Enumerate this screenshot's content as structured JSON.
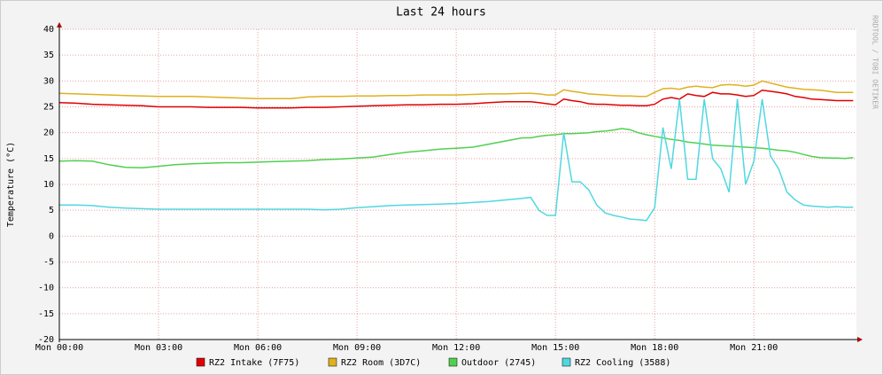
{
  "chart_data": {
    "type": "line",
    "title": "Last 24 hours",
    "y_label": "Temperature (°C)",
    "side_text": "RRDTOOL / TOBI OETIKER",
    "x": [
      0,
      0.5,
      1,
      1.5,
      2,
      2.5,
      3,
      3.5,
      4,
      4.5,
      5,
      5.5,
      6,
      6.5,
      7,
      7.5,
      8,
      8.5,
      9,
      9.5,
      10,
      10.5,
      11,
      11.5,
      12,
      12.5,
      13,
      13.5,
      14,
      14.25,
      14.5,
      14.75,
      15,
      15.25,
      15.5,
      15.75,
      16,
      16.25,
      16.5,
      16.75,
      17,
      17.25,
      17.5,
      17.75,
      18,
      18.25,
      18.5,
      18.75,
      19,
      19.25,
      19.5,
      19.75,
      20,
      20.25,
      20.5,
      20.75,
      21,
      21.25,
      21.5,
      21.75,
      22,
      22.25,
      22.5,
      22.75,
      23,
      23.25,
      23.5,
      23.75,
      24
    ],
    "xlim": [
      0,
      24.1
    ],
    "xticks": [
      {
        "value": 0,
        "label": "Mon 00:00"
      },
      {
        "value": 3,
        "label": "Mon 03:00"
      },
      {
        "value": 6,
        "label": "Mon 06:00"
      },
      {
        "value": 9,
        "label": "Mon 09:00"
      },
      {
        "value": 12,
        "label": "Mon 12:00"
      },
      {
        "value": 15,
        "label": "Mon 15:00"
      },
      {
        "value": 18,
        "label": "Mon 18:00"
      },
      {
        "value": 21,
        "label": "Mon 21:00"
      }
    ],
    "ylim": [
      -20,
      40
    ],
    "yticks": [
      -20,
      -15,
      -10,
      -5,
      0,
      5,
      10,
      15,
      20,
      25,
      30,
      35,
      40
    ],
    "grid": true,
    "series": [
      {
        "name": "RZ2 Intake (7F75)",
        "color": "#e00000",
        "values": [
          25.8,
          25.7,
          25.5,
          25.4,
          25.3,
          25.2,
          25,
          25,
          25,
          24.9,
          24.9,
          24.9,
          24.8,
          24.8,
          24.8,
          24.9,
          24.9,
          25,
          25.1,
          25.2,
          25.3,
          25.4,
          25.4,
          25.5,
          25.5,
          25.6,
          25.8,
          26,
          26,
          26,
          25.8,
          25.6,
          25.4,
          26.5,
          26.2,
          26,
          25.6,
          25.5,
          25.5,
          25.4,
          25.3,
          25.3,
          25.2,
          25.2,
          25.5,
          26.5,
          26.8,
          26.5,
          27.5,
          27.2,
          27,
          27.8,
          27.5,
          27.5,
          27.3,
          27,
          27.2,
          28.2,
          28,
          27.8,
          27.5,
          27,
          26.8,
          26.5,
          26.4,
          26.3,
          26.2,
          26.2,
          26.2
        ]
      },
      {
        "name": "RZ2 Room (3D7C)",
        "color": "#e0b020",
        "values": [
          27.6,
          27.5,
          27.4,
          27.3,
          27.2,
          27.1,
          27,
          27,
          27,
          26.9,
          26.8,
          26.7,
          26.6,
          26.6,
          26.6,
          26.9,
          27,
          27,
          27.1,
          27.1,
          27.2,
          27.2,
          27.3,
          27.3,
          27.3,
          27.4,
          27.5,
          27.5,
          27.6,
          27.6,
          27.5,
          27.3,
          27.3,
          28.3,
          28,
          27.8,
          27.5,
          27.4,
          27.3,
          27.2,
          27.1,
          27.1,
          27,
          27,
          27.8,
          28.5,
          28.6,
          28.4,
          28.8,
          29,
          28.8,
          28.7,
          29.2,
          29.3,
          29.2,
          29,
          29.2,
          30,
          29.6,
          29.2,
          28.8,
          28.6,
          28.4,
          28.3,
          28.2,
          28,
          27.8,
          27.8,
          27.8
        ]
      },
      {
        "name": "Outdoor (2745)",
        "color": "#50d050",
        "values": [
          14.5,
          14.6,
          14.5,
          13.8,
          13.3,
          13.2,
          13.5,
          13.8,
          14,
          14.1,
          14.2,
          14.2,
          14.3,
          14.4,
          14.5,
          14.6,
          14.8,
          14.9,
          15.1,
          15.3,
          15.8,
          16.2,
          16.5,
          16.8,
          17,
          17.2,
          17.8,
          18.4,
          19,
          19,
          19.3,
          19.5,
          19.6,
          19.8,
          19.8,
          19.9,
          20,
          20.2,
          20.3,
          20.5,
          20.8,
          20.6,
          20,
          19.6,
          19.3,
          19,
          18.7,
          18.5,
          18.2,
          18,
          17.8,
          17.6,
          17.5,
          17.4,
          17.3,
          17.2,
          17.1,
          17,
          16.8,
          16.6,
          16.5,
          16.2,
          15.8,
          15.4,
          15.2,
          15.1,
          15.1,
          15,
          15.2
        ]
      },
      {
        "name": "RZ2 Cooling (3588)",
        "color": "#50d8e0",
        "values": [
          6,
          6,
          5.9,
          5.6,
          5.4,
          5.3,
          5.2,
          5.2,
          5.2,
          5.2,
          5.2,
          5.2,
          5.2,
          5.2,
          5.2,
          5.2,
          5.1,
          5.2,
          5.5,
          5.7,
          5.9,
          6,
          6.1,
          6.2,
          6.3,
          6.5,
          6.7,
          7,
          7.3,
          7.5,
          5,
          4,
          4,
          20,
          10.5,
          10.5,
          9,
          6,
          4.5,
          4,
          3.7,
          3.3,
          3.2,
          3,
          5.5,
          21,
          13,
          26.5,
          11,
          11,
          26.5,
          15,
          13,
          8.5,
          26.5,
          10,
          14.5,
          26.5,
          15.5,
          13,
          8.5,
          7,
          6,
          5.8,
          5.7,
          5.6,
          5.7,
          5.6,
          5.6
        ]
      }
    ]
  }
}
